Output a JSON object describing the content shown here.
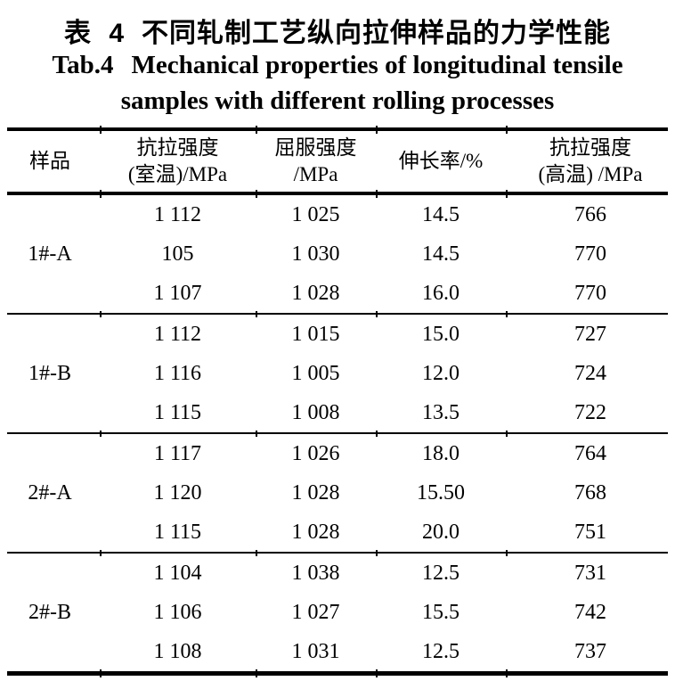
{
  "titles": {
    "chinese_label": "表 4",
    "chinese_title": "不同轧制工艺纵向拉伸样品的力学性能",
    "english_label": "Tab.4",
    "english_line1": "Mechanical properties of longitudinal tensile",
    "english_line2": "samples with different rolling processes"
  },
  "table": {
    "header": {
      "sample": "样品",
      "tensile_rt_line1": "抗拉强度",
      "tensile_rt_line2": "(室温)/MPa",
      "yield_line1": "屈服强度",
      "yield_line2": "/MPa",
      "elongation": "伸长率/%",
      "tensile_ht_line1": "抗拉强度",
      "tensile_ht_line2": "(高温) /MPa"
    },
    "groups": [
      {
        "sample": "1#-A",
        "rows": [
          [
            "1 112",
            "1 025",
            "14.5",
            "766"
          ],
          [
            "105",
            "1 030",
            "14.5",
            "770"
          ],
          [
            "1 107",
            "1 028",
            "16.0",
            "770"
          ]
        ]
      },
      {
        "sample": "1#-B",
        "rows": [
          [
            "1 112",
            "1 015",
            "15.0",
            "727"
          ],
          [
            "1 116",
            "1 005",
            "12.0",
            "724"
          ],
          [
            "1 115",
            "1 008",
            "13.5",
            "722"
          ]
        ]
      },
      {
        "sample": "2#-A",
        "rows": [
          [
            "1 117",
            "1 026",
            "18.0",
            "764"
          ],
          [
            "1 120",
            "1 028",
            "15.50",
            "768"
          ],
          [
            "1 115",
            "1 028",
            "20.0",
            "751"
          ]
        ]
      },
      {
        "sample": "2#-B",
        "rows": [
          [
            "1 104",
            "1 038",
            "12.5",
            "731"
          ],
          [
            "1 106",
            "1 027",
            "15.5",
            "742"
          ],
          [
            "1 108",
            "1 031",
            "12.5",
            "737"
          ]
        ]
      }
    ]
  }
}
